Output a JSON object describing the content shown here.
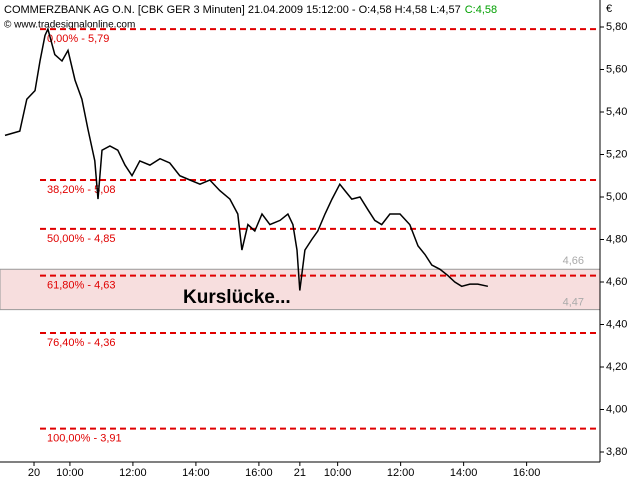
{
  "chart_data": {
    "type": "line",
    "title": "COMMERZBANK AG O.N. [CBK GER  3 Minuten] 21.04.2009 15:12:00 - O:4,58 H:4,58 L:4,57",
    "title_close": "C:4,58",
    "subtitle": "© www.tradesignalonline.com",
    "y_unit": "€",
    "annotation": "Kurslücke...",
    "color": "#000000",
    "x": [
      7.94,
      8.41,
      8.63,
      8.89,
      9.05,
      9.21,
      9.3,
      9.52,
      9.75,
      9.94,
      10.16,
      10.38,
      10.57,
      10.79,
      10.89,
      11.02,
      11.27,
      11.52,
      11.75,
      11.97,
      12.22,
      12.54,
      12.86,
      13.17,
      13.49,
      13.81,
      14.13,
      14.44,
      14.76,
      15.08,
      15.33,
      15.46,
      15.65,
      15.87,
      16.1,
      16.35,
      16.67,
      16.92,
      17.08,
      17.21,
      17.3,
      17.46,
      17.68,
      17.87,
      18.1,
      18.32,
      18.57,
      18.73,
      18.95,
      19.21,
      19.46,
      19.68,
      19.9,
      20.16,
      20.48,
      20.79,
      21.05,
      21.27,
      21.49,
      21.75,
      22.0,
      22.22,
      22.44,
      22.7,
      22.95,
      23.27
    ],
    "values": [
      5.29,
      5.31,
      5.46,
      5.5,
      5.64,
      5.76,
      5.79,
      5.67,
      5.64,
      5.69,
      5.55,
      5.46,
      5.32,
      5.17,
      4.99,
      5.22,
      5.24,
      5.22,
      5.15,
      5.1,
      5.17,
      5.15,
      5.18,
      5.16,
      5.1,
      5.08,
      5.06,
      5.08,
      5.03,
      4.99,
      4.92,
      4.75,
      4.87,
      4.84,
      4.92,
      4.87,
      4.89,
      4.92,
      4.87,
      4.75,
      4.56,
      4.75,
      4.8,
      4.84,
      4.92,
      4.99,
      5.06,
      5.03,
      4.99,
      5.0,
      4.94,
      4.89,
      4.87,
      4.92,
      4.92,
      4.87,
      4.77,
      4.73,
      4.68,
      4.66,
      4.63,
      4.6,
      4.58,
      4.59,
      4.59,
      4.58
    ],
    "xlim": [
      7.78,
      26.83
    ],
    "xticks": [
      {
        "value": 8.86,
        "label": "20"
      },
      {
        "value": 10,
        "label": "10:00"
      },
      {
        "value": 12,
        "label": "12:00"
      },
      {
        "value": 14,
        "label": "14:00"
      },
      {
        "value": 16,
        "label": "16:00"
      },
      {
        "value": 17.3,
        "label": "21"
      },
      {
        "value": 18.5,
        "label": "10:00"
      },
      {
        "value": 20.5,
        "label": "12:00"
      },
      {
        "value": 22.5,
        "label": "14:00"
      },
      {
        "value": 24.5,
        "label": "16:00"
      }
    ],
    "ylim": [
      3.753,
      5.927
    ],
    "yticks": [
      {
        "value": 3.8,
        "label": "3,80"
      },
      {
        "value": 4.0,
        "label": "4,00"
      },
      {
        "value": 4.2,
        "label": "4,20"
      },
      {
        "value": 4.4,
        "label": "4,40"
      },
      {
        "value": 4.6,
        "label": "4,60"
      },
      {
        "value": 4.8,
        "label": "4,80"
      },
      {
        "value": 5.0,
        "label": "5,00"
      },
      {
        "value": 5.2,
        "label": "5,20"
      },
      {
        "value": 5.4,
        "label": "5,40"
      },
      {
        "value": 5.6,
        "label": "5,60"
      },
      {
        "value": 5.8,
        "label": "5,80"
      }
    ],
    "levels_color": "#e00000",
    "levels": [
      {
        "value": 5.79,
        "label": "0,00% - 5,79"
      },
      {
        "value": 5.08,
        "label": "38,20% - 5,08"
      },
      {
        "value": 4.85,
        "label": "50,00% - 4,85"
      },
      {
        "value": 4.63,
        "label": "61,80% - 4,63"
      },
      {
        "value": 4.36,
        "label": "76,40% - 4,36"
      },
      {
        "value": 3.91,
        "label": "100,00% - 3,91"
      }
    ],
    "gap": [
      {
        "value": 4.66,
        "label": "4,66"
      },
      {
        "value": 4.47,
        "label": "4,47"
      }
    ],
    "gap_color": "#f7dede"
  }
}
